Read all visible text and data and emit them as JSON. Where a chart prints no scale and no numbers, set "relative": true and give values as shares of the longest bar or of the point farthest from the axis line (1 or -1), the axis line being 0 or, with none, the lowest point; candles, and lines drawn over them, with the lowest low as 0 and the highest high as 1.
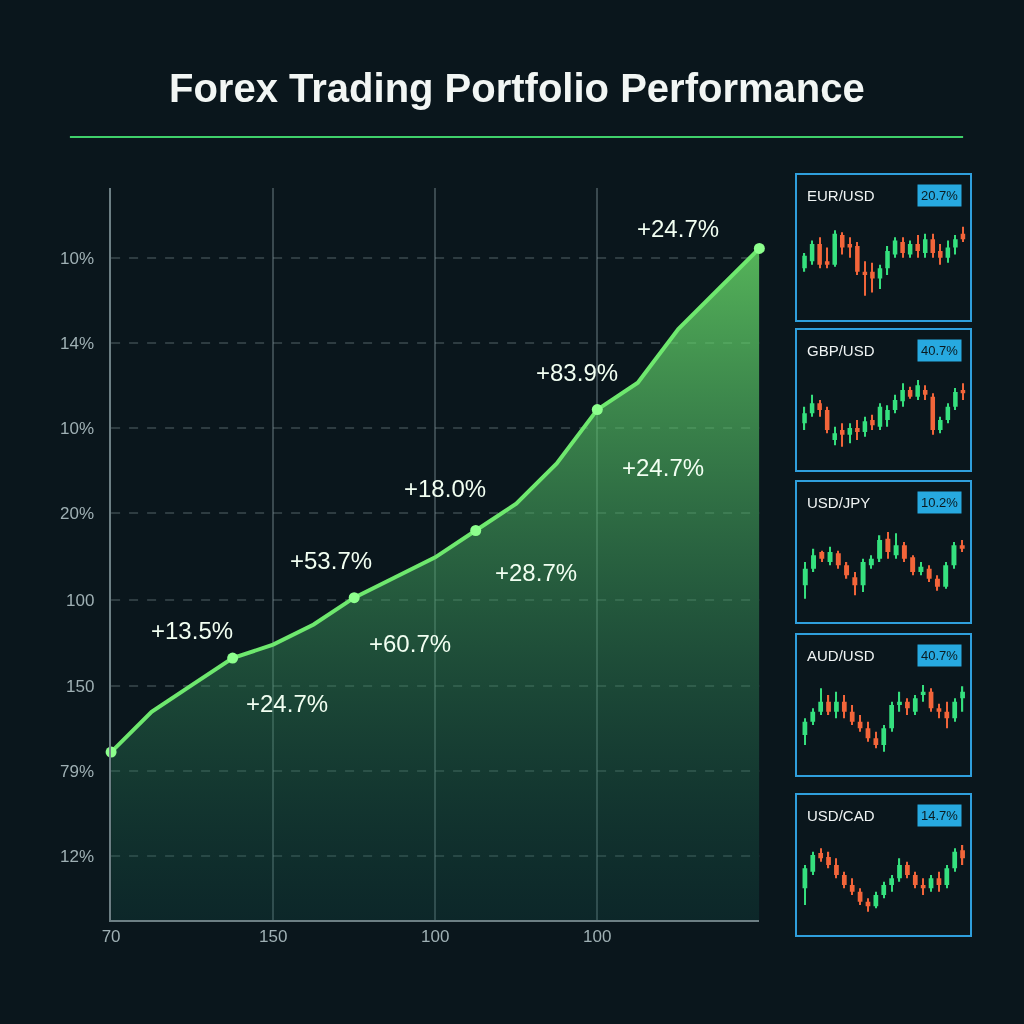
{
  "chart_data": [
    {
      "type": "area",
      "title": "Forex Trading Portfolio Performance",
      "relative": true,
      "grid": true,
      "legend": false,
      "categories": [
        "70",
        null,
        null,
        null,
        "150",
        null,
        null,
        null,
        "100",
        null,
        null,
        null,
        "100",
        null,
        null,
        null,
        null
      ],
      "series": [
        {
          "type": "area",
          "color": "#6ee86e",
          "values": [
            0.25,
            0.31,
            0.35,
            0.39,
            0.41,
            0.44,
            0.48,
            0.51,
            0.54,
            0.58,
            0.62,
            0.68,
            0.76,
            0.8,
            0.88,
            0.94,
            1.0
          ]
        },
        {
          "type": "scatter",
          "color": "#8dff8d",
          "marker": "circle",
          "values": [
            0.25,
            null,
            null,
            0.39,
            null,
            null,
            0.48,
            null,
            null,
            0.58,
            null,
            null,
            0.76,
            null,
            null,
            null,
            1.0
          ]
        }
      ],
      "annotations": [
        "10%",
        "14%",
        "10%",
        "20%",
        "100",
        "150",
        "79%",
        "12%",
        "+13.5%",
        "+24.7%",
        "+53.7%",
        "+60.7%",
        "+18.0%",
        "+28.7%",
        "+83.9%",
        "+24.7%",
        "+24.7%"
      ]
    },
    {
      "type": "candlestick",
      "title": "EUR/USD",
      "relative": true,
      "annotations": [
        "20.7%"
      ],
      "categories": [
        null,
        null,
        null,
        null,
        null,
        null,
        null,
        null,
        null,
        null,
        null,
        null,
        null,
        null,
        null,
        null,
        null,
        null,
        null,
        null,
        null,
        null
      ],
      "ohlc": [
        [
          0.4,
          0.62,
          0.35,
          0.58
        ],
        [
          0.5,
          0.8,
          0.45,
          0.75
        ],
        [
          0.75,
          0.85,
          0.4,
          0.45
        ],
        [
          0.5,
          0.7,
          0.4,
          0.45
        ],
        [
          0.45,
          0.95,
          0.42,
          0.9
        ],
        [
          0.88,
          0.92,
          0.6,
          0.7
        ],
        [
          0.75,
          0.85,
          0.55,
          0.7
        ],
        [
          0.72,
          0.78,
          0.3,
          0.35
        ],
        [
          0.35,
          0.5,
          0.0,
          0.3
        ],
        [
          0.35,
          0.48,
          0.05,
          0.25
        ],
        [
          0.25,
          0.45,
          0.1,
          0.4
        ],
        [
          0.4,
          0.72,
          0.3,
          0.65
        ],
        [
          0.6,
          0.85,
          0.55,
          0.8
        ],
        [
          0.78,
          0.85,
          0.55,
          0.62
        ],
        [
          0.6,
          0.8,
          0.55,
          0.75
        ],
        [
          0.75,
          0.88,
          0.55,
          0.65
        ],
        [
          0.62,
          0.9,
          0.55,
          0.82
        ],
        [
          0.82,
          0.9,
          0.55,
          0.62
        ],
        [
          0.65,
          0.75,
          0.45,
          0.55
        ],
        [
          0.55,
          0.8,
          0.48,
          0.7
        ],
        [
          0.7,
          0.88,
          0.6,
          0.82
        ],
        [
          0.9,
          1.0,
          0.78,
          0.82
        ]
      ]
    },
    {
      "type": "candlestick",
      "title": "GBP/USD",
      "relative": true,
      "annotations": [
        "40.7%"
      ],
      "categories": [
        null,
        null,
        null,
        null,
        null,
        null,
        null,
        null,
        null,
        null,
        null,
        null,
        null,
        null,
        null,
        null,
        null,
        null,
        null,
        null,
        null,
        null
      ],
      "ohlc": [
        [
          0.35,
          0.6,
          0.25,
          0.5
        ],
        [
          0.5,
          0.78,
          0.45,
          0.65
        ],
        [
          0.65,
          0.7,
          0.45,
          0.55
        ],
        [
          0.55,
          0.6,
          0.2,
          0.25
        ],
        [
          0.1,
          0.3,
          0.02,
          0.2
        ],
        [
          0.25,
          0.35,
          0.0,
          0.18
        ],
        [
          0.18,
          0.35,
          0.05,
          0.28
        ],
        [
          0.28,
          0.4,
          0.1,
          0.22
        ],
        [
          0.22,
          0.45,
          0.15,
          0.38
        ],
        [
          0.4,
          0.48,
          0.25,
          0.32
        ],
        [
          0.3,
          0.65,
          0.25,
          0.6
        ],
        [
          0.4,
          0.62,
          0.3,
          0.55
        ],
        [
          0.55,
          0.78,
          0.5,
          0.7
        ],
        [
          0.68,
          0.95,
          0.6,
          0.85
        ],
        [
          0.85,
          0.9,
          0.72,
          0.75
        ],
        [
          0.75,
          1.0,
          0.7,
          0.92
        ],
        [
          0.85,
          0.92,
          0.7,
          0.78
        ],
        [
          0.75,
          0.8,
          0.18,
          0.25
        ],
        [
          0.25,
          0.45,
          0.2,
          0.4
        ],
        [
          0.4,
          0.65,
          0.35,
          0.6
        ],
        [
          0.6,
          0.88,
          0.55,
          0.82
        ],
        [
          0.85,
          0.95,
          0.7,
          0.8
        ]
      ]
    },
    {
      "type": "candlestick",
      "title": "USD/JPY",
      "relative": true,
      "annotations": [
        "10.2%"
      ],
      "categories": [
        null,
        null,
        null,
        null,
        null,
        null,
        null,
        null,
        null,
        null,
        null,
        null,
        null,
        null,
        null,
        null,
        null,
        null,
        null,
        null
      ],
      "ohlc": [
        [
          0.2,
          0.55,
          0.0,
          0.45
        ],
        [
          0.45,
          0.75,
          0.4,
          0.65
        ],
        [
          0.7,
          0.72,
          0.55,
          0.6
        ],
        [
          0.55,
          0.78,
          0.5,
          0.7
        ],
        [
          0.68,
          0.72,
          0.45,
          0.5
        ],
        [
          0.5,
          0.55,
          0.3,
          0.35
        ],
        [
          0.32,
          0.4,
          0.05,
          0.2
        ],
        [
          0.2,
          0.6,
          0.1,
          0.55
        ],
        [
          0.5,
          0.65,
          0.45,
          0.6
        ],
        [
          0.6,
          0.95,
          0.55,
          0.88
        ],
        [
          0.9,
          1.0,
          0.6,
          0.7
        ],
        [
          0.65,
          0.98,
          0.6,
          0.8
        ],
        [
          0.8,
          0.85,
          0.55,
          0.6
        ],
        [
          0.62,
          0.65,
          0.35,
          0.4
        ],
        [
          0.4,
          0.55,
          0.35,
          0.48
        ],
        [
          0.45,
          0.5,
          0.25,
          0.3
        ],
        [
          0.3,
          0.35,
          0.12,
          0.18
        ],
        [
          0.18,
          0.55,
          0.15,
          0.5
        ],
        [
          0.5,
          0.85,
          0.45,
          0.8
        ],
        [
          0.8,
          0.88,
          0.7,
          0.75
        ]
      ]
    },
    {
      "type": "candlestick",
      "title": "AUD/USD",
      "relative": true,
      "annotations": [
        "40.7%"
      ],
      "categories": [
        null,
        null,
        null,
        null,
        null,
        null,
        null,
        null,
        null,
        null,
        null,
        null,
        null,
        null,
        null,
        null,
        null,
        null,
        null,
        null,
        null
      ],
      "ohlc": [
        [
          0.25,
          0.5,
          0.1,
          0.45
        ],
        [
          0.45,
          0.65,
          0.4,
          0.6
        ],
        [
          0.6,
          0.95,
          0.55,
          0.75
        ],
        [
          0.75,
          0.85,
          0.55,
          0.6
        ],
        [
          0.6,
          0.9,
          0.5,
          0.75
        ],
        [
          0.75,
          0.85,
          0.5,
          0.6
        ],
        [
          0.6,
          0.7,
          0.4,
          0.45
        ],
        [
          0.45,
          0.55,
          0.3,
          0.35
        ],
        [
          0.35,
          0.45,
          0.15,
          0.2
        ],
        [
          0.2,
          0.3,
          0.05,
          0.1
        ],
        [
          0.1,
          0.4,
          0.0,
          0.35
        ],
        [
          0.35,
          0.75,
          0.3,
          0.7
        ],
        [
          0.7,
          0.9,
          0.6,
          0.75
        ],
        [
          0.75,
          0.8,
          0.55,
          0.65
        ],
        [
          0.6,
          0.85,
          0.55,
          0.8
        ],
        [
          0.85,
          1.0,
          0.75,
          0.9
        ],
        [
          0.9,
          0.95,
          0.6,
          0.65
        ],
        [
          0.65,
          0.72,
          0.5,
          0.6
        ],
        [
          0.6,
          0.75,
          0.35,
          0.5
        ],
        [
          0.5,
          0.8,
          0.45,
          0.75
        ],
        [
          0.8,
          0.98,
          0.6,
          0.9
        ]
      ]
    },
    {
      "type": "candlestick",
      "title": "USD/CAD",
      "relative": true,
      "annotations": [
        "14.7%"
      ],
      "categories": [
        null,
        null,
        null,
        null,
        null,
        null,
        null,
        null,
        null,
        null,
        null,
        null,
        null,
        null,
        null,
        null,
        null,
        null,
        null,
        null,
        null
      ],
      "ohlc": [
        [
          0.35,
          0.7,
          0.1,
          0.65
        ],
        [
          0.6,
          0.9,
          0.55,
          0.85
        ],
        [
          0.88,
          0.95,
          0.75,
          0.8
        ],
        [
          0.82,
          0.9,
          0.65,
          0.7
        ],
        [
          0.7,
          0.8,
          0.5,
          0.55
        ],
        [
          0.55,
          0.6,
          0.35,
          0.4
        ],
        [
          0.4,
          0.5,
          0.25,
          0.3
        ],
        [
          0.3,
          0.35,
          0.1,
          0.15
        ],
        [
          0.15,
          0.2,
          0.0,
          0.08
        ],
        [
          0.08,
          0.3,
          0.05,
          0.25
        ],
        [
          0.25,
          0.45,
          0.2,
          0.4
        ],
        [
          0.4,
          0.55,
          0.3,
          0.5
        ],
        [
          0.5,
          0.8,
          0.45,
          0.7
        ],
        [
          0.7,
          0.75,
          0.5,
          0.55
        ],
        [
          0.55,
          0.6,
          0.35,
          0.4
        ],
        [
          0.4,
          0.5,
          0.25,
          0.35
        ],
        [
          0.35,
          0.55,
          0.3,
          0.5
        ],
        [
          0.5,
          0.6,
          0.3,
          0.4
        ],
        [
          0.4,
          0.7,
          0.35,
          0.65
        ],
        [
          0.65,
          0.95,
          0.6,
          0.9
        ],
        [
          0.92,
          1.0,
          0.7,
          0.8
        ]
      ]
    }
  ]
}
